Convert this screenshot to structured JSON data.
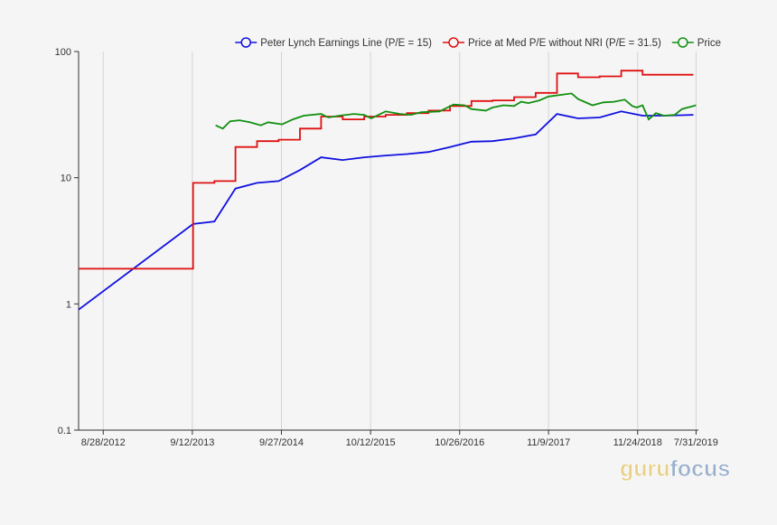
{
  "colors": {
    "background": "#f5f5f5",
    "grid": "#d4d4d4",
    "axis": "#333333",
    "watermark_light": "#e6d08a",
    "watermark_dark": "#9bb0cc"
  },
  "watermark": {
    "part1": "guru",
    "part2": "focus"
  },
  "chart_data": {
    "type": "line",
    "y_scale": "log",
    "ylim": [
      0.1,
      100
    ],
    "xlim": [
      "2012-05-15",
      "2019-08-10"
    ],
    "y_ticks": [
      {
        "value": 0.1,
        "label": "0.1"
      },
      {
        "value": 1,
        "label": "1"
      },
      {
        "value": 10,
        "label": "10"
      },
      {
        "value": 100,
        "label": "100"
      }
    ],
    "x_ticks": [
      {
        "date": "2012-08-28",
        "label": "8/28/2012"
      },
      {
        "date": "2013-09-12",
        "label": "9/12/2013"
      },
      {
        "date": "2014-09-27",
        "label": "9/27/2014"
      },
      {
        "date": "2015-10-12",
        "label": "10/12/2015"
      },
      {
        "date": "2016-10-26",
        "label": "10/26/2016"
      },
      {
        "date": "2017-11-09",
        "label": "11/9/2017"
      },
      {
        "date": "2018-11-24",
        "label": "11/24/2018"
      },
      {
        "date": "2019-07-31",
        "label": "7/31/2019"
      }
    ],
    "grid": true,
    "legend_position": "top-right",
    "series": [
      {
        "name": "Peter Lynch Earnings Line (P/E = 15)",
        "color": "#1010e0",
        "step": false,
        "points": [
          [
            "2012-05-15",
            0.9
          ],
          [
            "2013-09-15",
            4.3
          ],
          [
            "2013-12-15",
            4.5
          ],
          [
            "2014-03-15",
            8.2
          ],
          [
            "2014-06-15",
            9.1
          ],
          [
            "2014-09-15",
            9.4
          ],
          [
            "2014-12-15",
            11.5
          ],
          [
            "2015-03-15",
            14.5
          ],
          [
            "2015-06-15",
            13.8
          ],
          [
            "2015-09-15",
            14.5
          ],
          [
            "2015-12-15",
            15.0
          ],
          [
            "2016-03-15",
            15.4
          ],
          [
            "2016-06-15",
            16.0
          ],
          [
            "2016-09-15",
            17.5
          ],
          [
            "2016-12-15",
            19.3
          ],
          [
            "2017-03-15",
            19.5
          ],
          [
            "2017-06-15",
            20.5
          ],
          [
            "2017-09-15",
            22.0
          ],
          [
            "2017-12-15",
            32.0
          ],
          [
            "2018-03-15",
            29.5
          ],
          [
            "2018-06-15",
            30.0
          ],
          [
            "2018-09-15",
            33.5
          ],
          [
            "2018-12-15",
            31.0
          ],
          [
            "2019-03-15",
            31.0
          ],
          [
            "2019-07-20",
            31.5
          ]
        ]
      },
      {
        "name": "Price at Med P/E without NRI (P/E = 31.5)",
        "color": "#e01010",
        "step": true,
        "points": [
          [
            "2012-05-15",
            1.9
          ],
          [
            "2013-09-15",
            9.1
          ],
          [
            "2013-12-15",
            9.4
          ],
          [
            "2014-03-15",
            17.5
          ],
          [
            "2014-06-15",
            19.5
          ],
          [
            "2014-09-15",
            20.0
          ],
          [
            "2014-12-15",
            24.5
          ],
          [
            "2015-03-15",
            30.5
          ],
          [
            "2015-06-15",
            29.0
          ],
          [
            "2015-09-15",
            30.5
          ],
          [
            "2015-12-15",
            31.5
          ],
          [
            "2016-03-15",
            32.5
          ],
          [
            "2016-06-15",
            34.0
          ],
          [
            "2016-09-15",
            37.0
          ],
          [
            "2016-12-15",
            40.5
          ],
          [
            "2017-03-15",
            41.0
          ],
          [
            "2017-06-15",
            43.5
          ],
          [
            "2017-09-15",
            47.0
          ],
          [
            "2017-12-15",
            67.0
          ],
          [
            "2018-03-15",
            62.5
          ],
          [
            "2018-06-15",
            63.5
          ],
          [
            "2018-09-15",
            70.5
          ],
          [
            "2018-12-15",
            65.5
          ],
          [
            "2019-07-20",
            65.5
          ]
        ]
      },
      {
        "name": "Price",
        "color": "#119011",
        "step": false,
        "points": [
          [
            "2013-12-20",
            26.0
          ],
          [
            "2014-01-20",
            24.5
          ],
          [
            "2014-02-20",
            28.0
          ],
          [
            "2014-04-01",
            28.5
          ],
          [
            "2014-05-15",
            27.5
          ],
          [
            "2014-07-01",
            26.0
          ],
          [
            "2014-08-01",
            27.5
          ],
          [
            "2014-09-30",
            26.5
          ],
          [
            "2014-11-15",
            29.0
          ],
          [
            "2014-12-31",
            31.0
          ],
          [
            "2015-03-15",
            32.0
          ],
          [
            "2015-04-15",
            30.0
          ],
          [
            "2015-06-01",
            31.0
          ],
          [
            "2015-08-01",
            32.0
          ],
          [
            "2015-09-15",
            31.5
          ],
          [
            "2015-10-15",
            29.5
          ],
          [
            "2015-12-15",
            33.5
          ],
          [
            "2016-02-15",
            32.0
          ],
          [
            "2016-04-01",
            31.5
          ],
          [
            "2016-05-15",
            33.0
          ],
          [
            "2016-08-01",
            33.5
          ],
          [
            "2016-09-30",
            38.0
          ],
          [
            "2016-11-15",
            37.5
          ],
          [
            "2016-12-15",
            35.0
          ],
          [
            "2017-02-15",
            34.0
          ],
          [
            "2017-03-15",
            36.0
          ],
          [
            "2017-05-01",
            37.5
          ],
          [
            "2017-06-15",
            37.0
          ],
          [
            "2017-07-15",
            40.0
          ],
          [
            "2017-08-15",
            39.0
          ],
          [
            "2017-10-01",
            41.0
          ],
          [
            "2017-11-09",
            44.0
          ],
          [
            "2018-02-15",
            46.5
          ],
          [
            "2018-03-15",
            42.0
          ],
          [
            "2018-05-15",
            37.5
          ],
          [
            "2018-07-01",
            39.5
          ],
          [
            "2018-08-15",
            40.0
          ],
          [
            "2018-09-30",
            41.5
          ],
          [
            "2018-11-01",
            37.0
          ],
          [
            "2018-11-20",
            36.0
          ],
          [
            "2018-12-15",
            37.5
          ],
          [
            "2019-01-10",
            29.0
          ],
          [
            "2019-02-10",
            32.5
          ],
          [
            "2019-03-15",
            31.0
          ],
          [
            "2019-05-01",
            31.5
          ],
          [
            "2019-06-01",
            35.0
          ],
          [
            "2019-07-31",
            37.5
          ]
        ]
      }
    ]
  }
}
